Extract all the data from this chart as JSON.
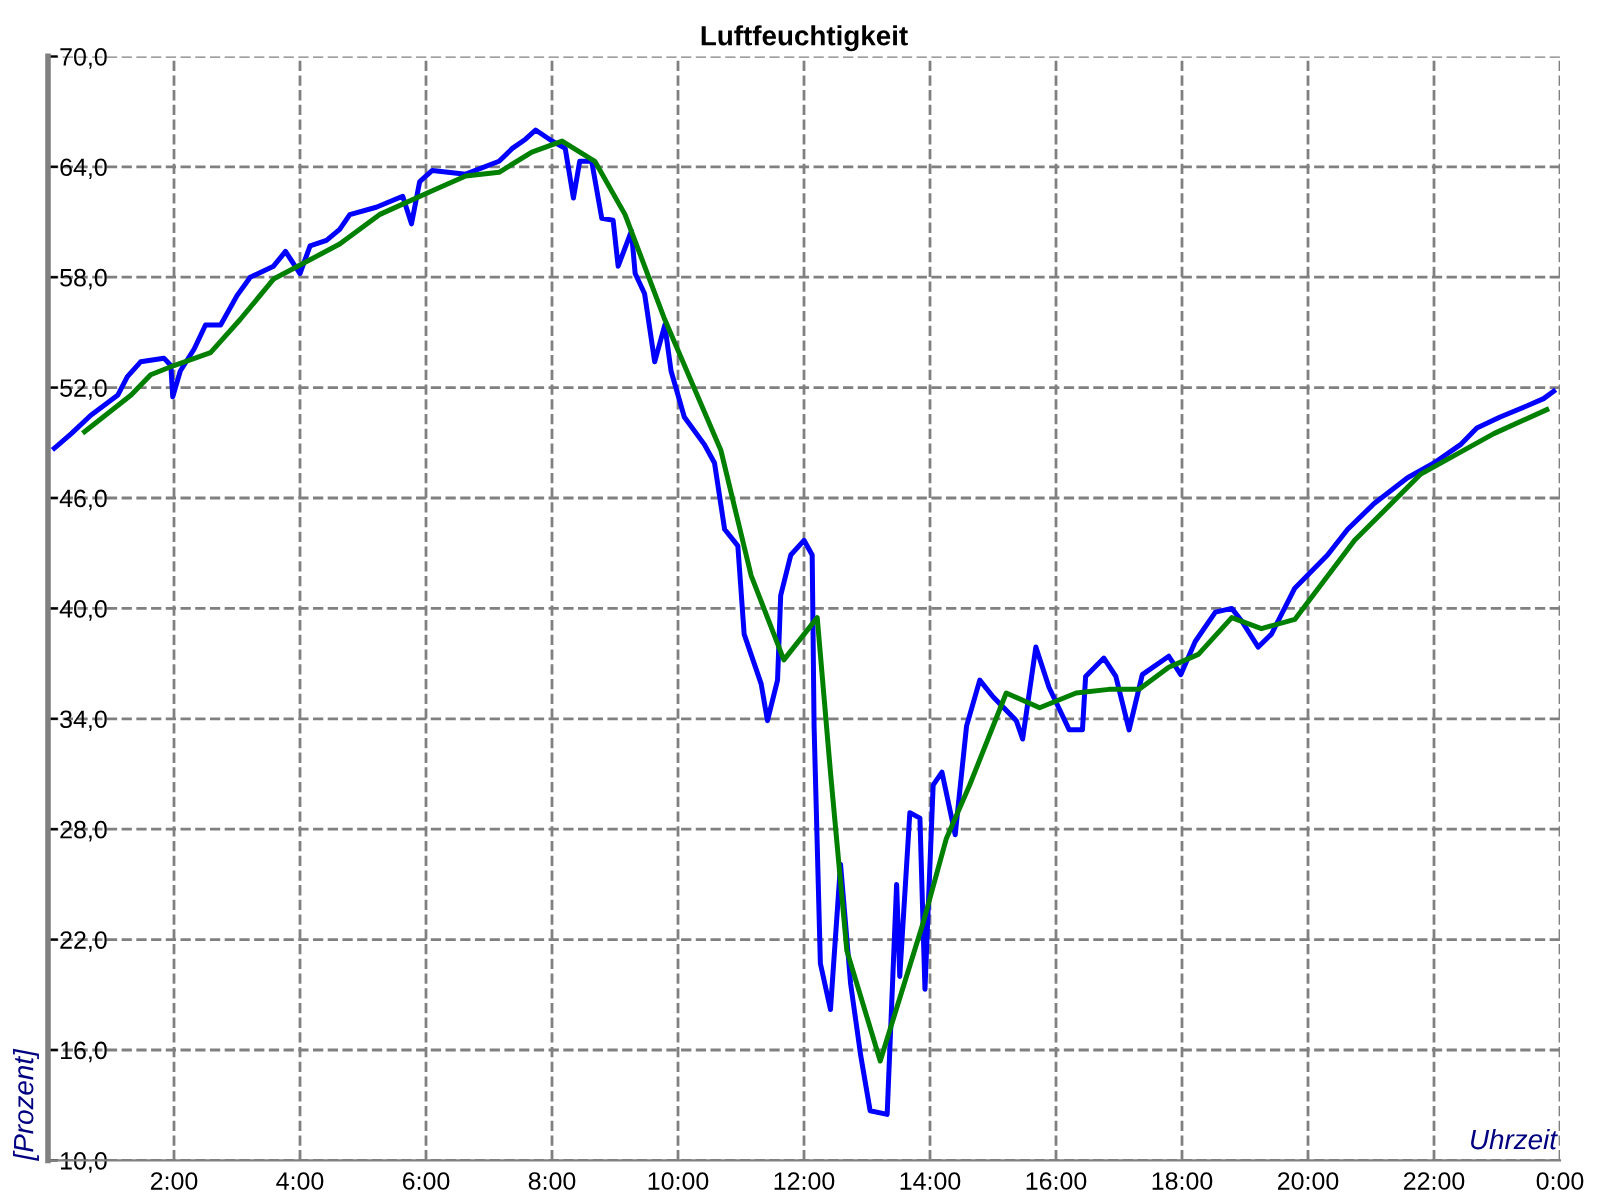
{
  "chart_data": {
    "type": "line",
    "title": "Luftfeuchtigkeit",
    "xlabel": "Uhrzeit",
    "ylabel": "[Prozent]",
    "xlim": [
      0,
      24
    ],
    "xticks": [
      {
        "value": 2,
        "label": "2:00"
      },
      {
        "value": 4,
        "label": "4:00"
      },
      {
        "value": 6,
        "label": "6:00"
      },
      {
        "value": 8,
        "label": "8:00"
      },
      {
        "value": 10,
        "label": "10:00"
      },
      {
        "value": 12,
        "label": "12:00"
      },
      {
        "value": 14,
        "label": "14:00"
      },
      {
        "value": 16,
        "label": "16:00"
      },
      {
        "value": 18,
        "label": "18:00"
      },
      {
        "value": 20,
        "label": "20:00"
      },
      {
        "value": 22,
        "label": "22:00"
      },
      {
        "value": 24,
        "label": "0:00"
      }
    ],
    "ylim": [
      10,
      70
    ],
    "yticks": [
      {
        "value": 10,
        "label": "10,0"
      },
      {
        "value": 16,
        "label": "16,0"
      },
      {
        "value": 22,
        "label": "22,0"
      },
      {
        "value": 28,
        "label": "28,0"
      },
      {
        "value": 34,
        "label": "34,0"
      },
      {
        "value": 40,
        "label": "40,0"
      },
      {
        "value": 46,
        "label": "46,0"
      },
      {
        "value": 52,
        "label": "52,0"
      },
      {
        "value": 58,
        "label": "58,0"
      },
      {
        "value": 64,
        "label": "64,0"
      },
      {
        "value": 70,
        "label": "70,0"
      }
    ],
    "grid": true,
    "marker": "none",
    "line_style": "solid",
    "series": [
      {
        "color": "#0000ff",
        "x": [
          0.1,
          0.37,
          0.68,
          1.11,
          1.26,
          1.47,
          1.84,
          1.95,
          1.98,
          2.1,
          2.32,
          2.5,
          2.74,
          3.0,
          3.21,
          3.58,
          3.77,
          4.0,
          4.16,
          4.42,
          4.63,
          4.79,
          5.21,
          5.63,
          5.77,
          5.9,
          6.1,
          6.63,
          7.16,
          7.37,
          7.58,
          7.74,
          8.0,
          8.21,
          8.34,
          8.44,
          8.63,
          8.79,
          8.97,
          9.05,
          9.26,
          9.32,
          9.47,
          9.63,
          9.79,
          9.89,
          10.1,
          10.42,
          10.58,
          10.74,
          10.95,
          11.05,
          11.32,
          11.42,
          11.58,
          11.63,
          11.79,
          12.0,
          12.13,
          12.16,
          12.26,
          12.42,
          12.58,
          12.74,
          12.9,
          13.05,
          13.32,
          13.47,
          13.52,
          13.68,
          13.84,
          13.92,
          14.05,
          14.19,
          14.4,
          14.58,
          14.79,
          15.0,
          15.37,
          15.47,
          15.68,
          15.89,
          16.21,
          16.42,
          16.47,
          16.76,
          16.95,
          17.16,
          17.37,
          17.79,
          17.98,
          18.21,
          18.53,
          18.79,
          18.95,
          19.21,
          19.42,
          19.79,
          20.31,
          20.63,
          21.05,
          21.58,
          22.0,
          22.42,
          22.68,
          23.05,
          23.47,
          23.74,
          23.9
        ],
        "values": [
          48.7,
          49.5,
          50.5,
          51.6,
          52.6,
          53.4,
          53.6,
          53.2,
          51.5,
          52.9,
          54.1,
          55.4,
          55.4,
          57.0,
          58.0,
          58.6,
          59.4,
          58.2,
          59.7,
          60.0,
          60.6,
          61.4,
          61.8,
          62.4,
          60.9,
          63.2,
          63.8,
          63.6,
          64.3,
          65.0,
          65.5,
          66.0,
          65.4,
          65.0,
          62.3,
          64.3,
          64.3,
          61.2,
          61.1,
          58.6,
          60.5,
          58.2,
          57.1,
          53.4,
          55.4,
          52.9,
          50.4,
          48.9,
          47.9,
          44.3,
          43.4,
          38.6,
          35.9,
          33.9,
          36.1,
          40.7,
          42.9,
          43.7,
          42.9,
          33.6,
          20.7,
          18.2,
          26.1,
          19.6,
          15.7,
          12.7,
          12.5,
          25.0,
          20.0,
          28.9,
          28.6,
          19.3,
          30.4,
          31.1,
          27.7,
          33.6,
          36.1,
          35.2,
          33.9,
          32.9,
          37.9,
          35.7,
          33.4,
          33.4,
          36.3,
          37.3,
          36.3,
          33.4,
          36.4,
          37.4,
          36.4,
          38.2,
          39.8,
          40.0,
          39.3,
          37.9,
          38.6,
          41.1,
          42.9,
          44.3,
          45.7,
          47.1,
          47.9,
          48.9,
          49.8,
          50.4,
          51.0,
          51.4,
          51.8
        ]
      },
      {
        "color": "#008000",
        "x": [
          0.58,
          1.32,
          1.63,
          2.0,
          2.58,
          3.05,
          3.58,
          4.63,
          5.26,
          6.1,
          6.63,
          7.16,
          7.68,
          8.16,
          8.68,
          9.16,
          9.79,
          10.68,
          11.16,
          11.68,
          12.21,
          12.42,
          12.68,
          13.21,
          13.89,
          14.26,
          14.63,
          15.21,
          15.74,
          16.32,
          16.84,
          17.32,
          17.79,
          18.26,
          18.79,
          19.26,
          19.79,
          20.74,
          21.79,
          22.95,
          23.79
        ],
        "values": [
          49.6,
          51.6,
          52.7,
          53.2,
          53.9,
          55.7,
          57.9,
          59.8,
          61.4,
          62.7,
          63.5,
          63.7,
          64.8,
          65.4,
          64.3,
          61.4,
          55.7,
          48.6,
          41.8,
          37.2,
          39.5,
          31.1,
          21.4,
          15.4,
          22.9,
          27.5,
          30.4,
          35.4,
          34.6,
          35.4,
          35.6,
          35.6,
          36.8,
          37.5,
          39.5,
          38.9,
          39.4,
          43.7,
          47.3,
          49.5,
          50.8
        ]
      }
    ]
  }
}
